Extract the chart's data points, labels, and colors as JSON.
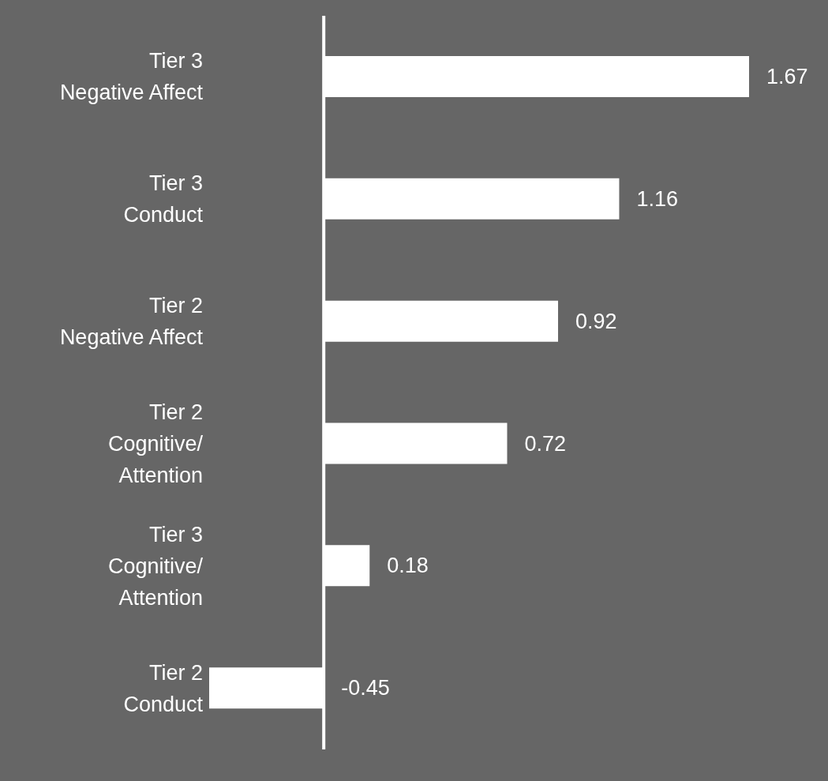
{
  "chart_data": {
    "type": "bar",
    "orientation": "horizontal",
    "categories": [
      "Tier 3\nNegative Affect",
      "Tier 3\nConduct",
      "Tier 2\nNegative Affect",
      "Tier 2\nCognitive/\nAttention",
      "Tier 3\nCognitive/\nAttention",
      "Tier 2\nConduct"
    ],
    "values": [
      1.67,
      1.16,
      0.92,
      0.72,
      0.18,
      -0.45
    ],
    "color": "#ffffff",
    "data_labels": true,
    "grid": false,
    "legend": false
  }
}
